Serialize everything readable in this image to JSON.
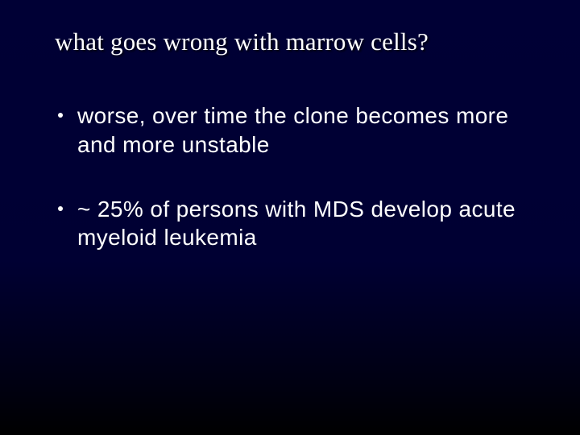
{
  "slide": {
    "title": "what goes wrong with marrow cells?",
    "bullets": [
      "worse, over time the clone becomes more and more unstable",
      "~ 25% of persons with MDS develop acute myeloid leukemia"
    ],
    "background_gradient_top": "#000035",
    "background_gradient_bottom": "#000000",
    "title_color": "#ffffff",
    "title_font_family": "Georgia, Times New Roman, serif",
    "title_font_size_pt": 24,
    "body_color": "#ffffff",
    "body_font_family": "Century Gothic, Avant Garde, sans-serif",
    "body_font_size_pt": 21,
    "bullet_marker_color": "#ffffff"
  }
}
